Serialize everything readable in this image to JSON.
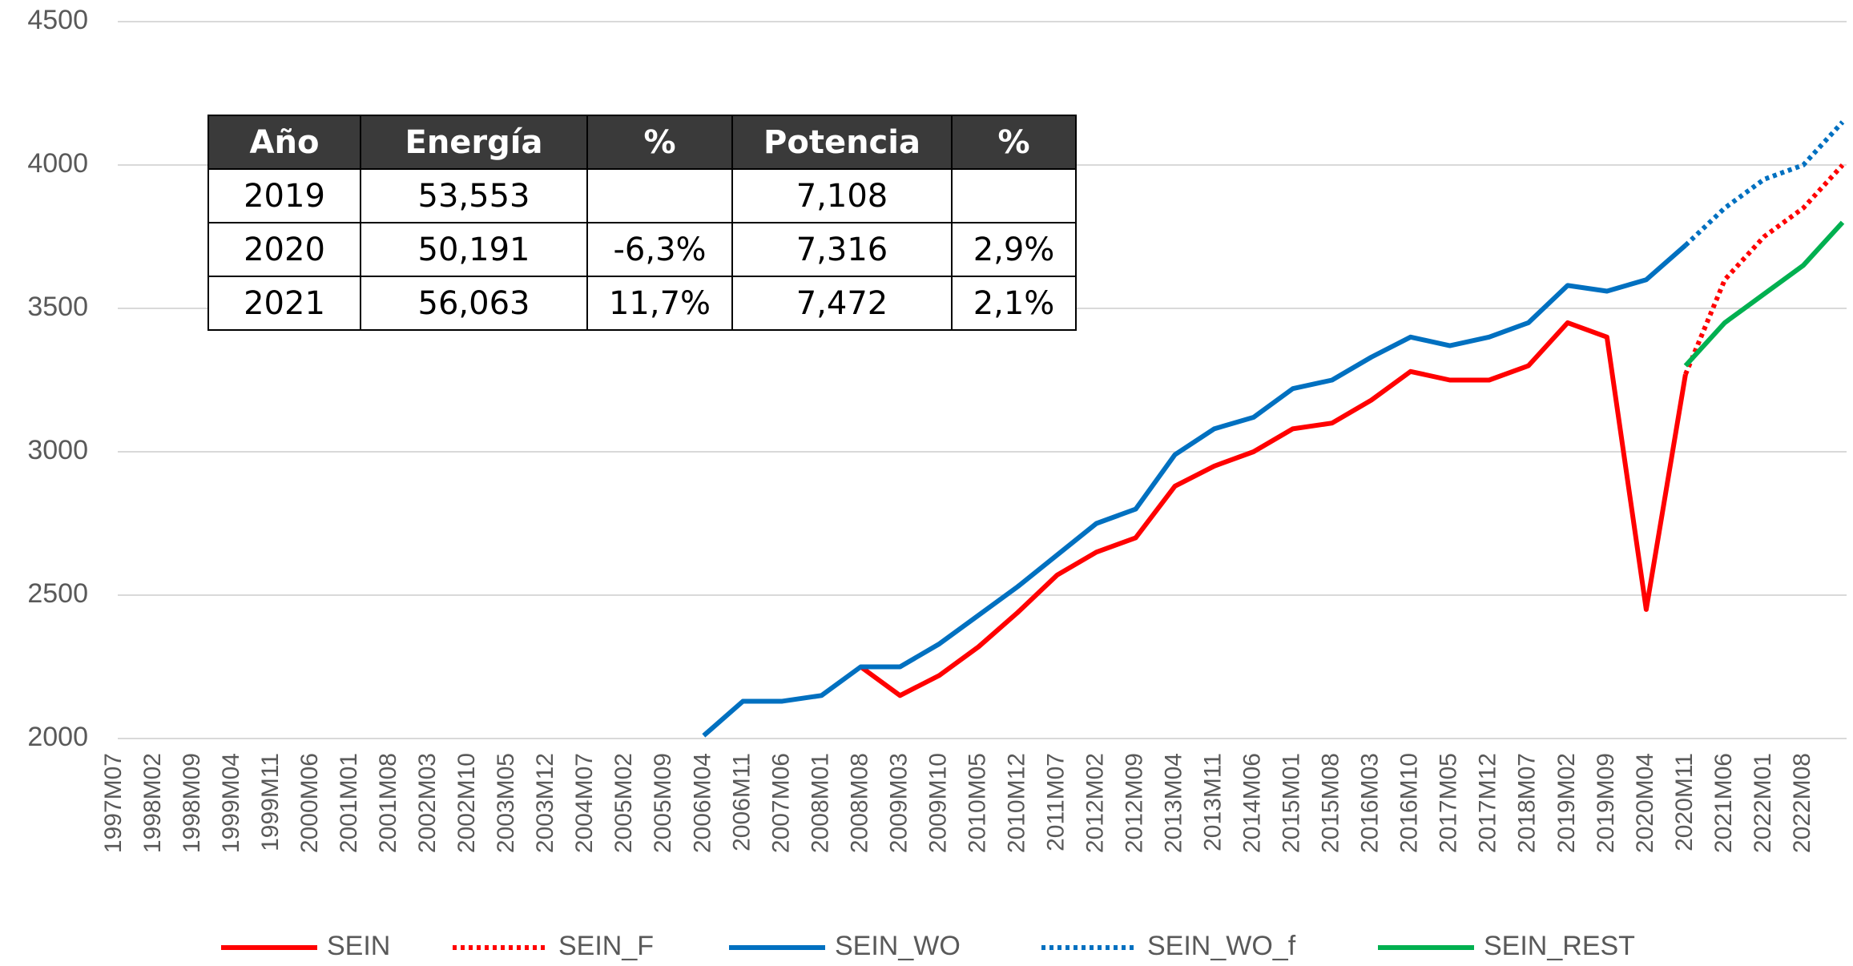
{
  "chart_data": {
    "type": "line",
    "categories": [
      "1997M07",
      "1998M02",
      "1998M09",
      "1999M04",
      "1999M11",
      "2000M06",
      "2001M01",
      "2001M08",
      "2002M03",
      "2002M10",
      "2003M05",
      "2003M12",
      "2004M07",
      "2005M02",
      "2005M09",
      "2006M04",
      "2006M11",
      "2007M06",
      "2008M01",
      "2008M08",
      "2009M03",
      "2009M10",
      "2010M05",
      "2010M12",
      "2011M07",
      "2012M02",
      "2012M09",
      "2013M04",
      "2013M11",
      "2014M06",
      "2015M01",
      "2015M08",
      "2016M03",
      "2016M10",
      "2017M05",
      "2017M12",
      "2018M07",
      "2019M02",
      "2019M09",
      "2020M04",
      "2020M11",
      "2021M06",
      "2022M01",
      "2022M08",
      null
    ],
    "series": [
      {
        "name": "SEIN",
        "color": "#ff0000",
        "style": "solid",
        "values": [
          null,
          null,
          null,
          null,
          null,
          null,
          null,
          null,
          null,
          null,
          null,
          null,
          null,
          null,
          null,
          null,
          null,
          null,
          null,
          2250,
          2150,
          2220,
          2320,
          2440,
          2570,
          2650,
          2700,
          2880,
          2950,
          3000,
          3080,
          3100,
          3180,
          3280,
          3250,
          3250,
          3300,
          3450,
          3400,
          2450,
          3270,
          null,
          null,
          null,
          null
        ]
      },
      {
        "name": "SEIN_F",
        "color": "#ff0000",
        "style": "dotted",
        "values": [
          null,
          null,
          null,
          null,
          null,
          null,
          null,
          null,
          null,
          null,
          null,
          null,
          null,
          null,
          null,
          null,
          null,
          null,
          null,
          null,
          null,
          null,
          null,
          null,
          null,
          null,
          null,
          null,
          null,
          null,
          null,
          null,
          null,
          null,
          null,
          null,
          null,
          null,
          null,
          null,
          3270,
          3600,
          3750,
          3850,
          4000
        ]
      },
      {
        "name": "SEIN_WO",
        "color": "#0070c0",
        "style": "solid",
        "values": [
          null,
          null,
          null,
          null,
          null,
          null,
          null,
          null,
          null,
          null,
          null,
          null,
          null,
          null,
          null,
          2010,
          2130,
          2130,
          2150,
          2250,
          2250,
          2330,
          2430,
          2530,
          2640,
          2750,
          2800,
          2990,
          3080,
          3120,
          3220,
          3250,
          3330,
          3400,
          3370,
          3400,
          3450,
          3580,
          3560,
          3600,
          3720,
          null,
          null,
          null,
          null
        ]
      },
      {
        "name": "SEIN_WO_f",
        "color": "#0070c0",
        "style": "dotted",
        "values": [
          null,
          null,
          null,
          null,
          null,
          null,
          null,
          null,
          null,
          null,
          null,
          null,
          null,
          null,
          null,
          null,
          null,
          null,
          null,
          null,
          null,
          null,
          null,
          null,
          null,
          null,
          null,
          null,
          null,
          null,
          null,
          null,
          null,
          null,
          null,
          null,
          null,
          null,
          null,
          null,
          3720,
          3850,
          3950,
          4000,
          4150
        ]
      },
      {
        "name": "SEIN_REST",
        "color": "#00b050",
        "style": "solid",
        "values": [
          null,
          null,
          null,
          null,
          null,
          null,
          null,
          null,
          null,
          null,
          null,
          null,
          null,
          null,
          null,
          null,
          null,
          null,
          null,
          null,
          null,
          null,
          null,
          null,
          null,
          null,
          null,
          null,
          null,
          null,
          null,
          null,
          null,
          null,
          null,
          null,
          null,
          null,
          null,
          null,
          3300,
          3450,
          3550,
          3650,
          3800
        ]
      }
    ],
    "ylim": [
      2000,
      4500
    ],
    "yticks": [
      2000,
      2500,
      3000,
      3500,
      4000,
      4500
    ],
    "grid": true,
    "legend": "bottom"
  },
  "table": {
    "header": [
      "Año",
      "Energía",
      "%",
      "Potencia",
      "%"
    ],
    "rows": [
      [
        "2019",
        "53,553",
        null,
        "7,108",
        null
      ],
      [
        "2020",
        "50,191",
        "-6,3%",
        "7,316",
        "2,9%"
      ],
      [
        "2021",
        "56,063",
        "11,7%",
        "7,472",
        "2,1%"
      ]
    ]
  }
}
